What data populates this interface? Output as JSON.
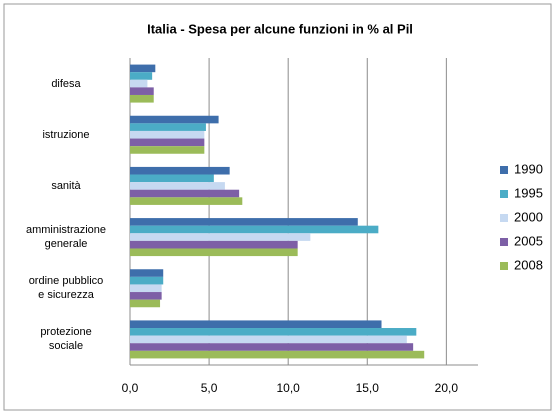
{
  "chart_data": {
    "type": "hbar",
    "title": "Italia - Spesa per alcune funzioni in % al Pil",
    "categories": [
      "difesa",
      "istruzione",
      "sanità",
      "amministrazione\ngenerale",
      "ordine pubblico\ne sicurezza",
      "protezione\nsociale"
    ],
    "series": [
      {
        "name": "1990",
        "color": "#3e6eab",
        "values": [
          1.6,
          5.6,
          6.3,
          14.4,
          2.1,
          15.9
        ]
      },
      {
        "name": "1995",
        "color": "#4bacc6",
        "values": [
          1.4,
          4.8,
          5.3,
          15.7,
          2.1,
          18.1
        ]
      },
      {
        "name": "2000",
        "color": "#c6d9f1",
        "values": [
          1.1,
          4.7,
          6.0,
          11.4,
          2.0,
          17.5
        ]
      },
      {
        "name": "2005",
        "color": "#7d5fa6",
        "values": [
          1.5,
          4.7,
          6.9,
          10.6,
          2.0,
          17.9
        ]
      },
      {
        "name": "2008",
        "color": "#9bbb59",
        "values": [
          1.5,
          4.7,
          7.1,
          10.6,
          1.9,
          18.6
        ]
      }
    ],
    "xlim": [
      0,
      22
    ],
    "xticks": [
      {
        "value": 0,
        "label": "0,0"
      },
      {
        "value": 5,
        "label": "5,0"
      },
      {
        "value": 10,
        "label": "10,0"
      },
      {
        "value": 15,
        "label": "15,0"
      },
      {
        "value": 20,
        "label": "20,0"
      }
    ],
    "grid": true
  }
}
